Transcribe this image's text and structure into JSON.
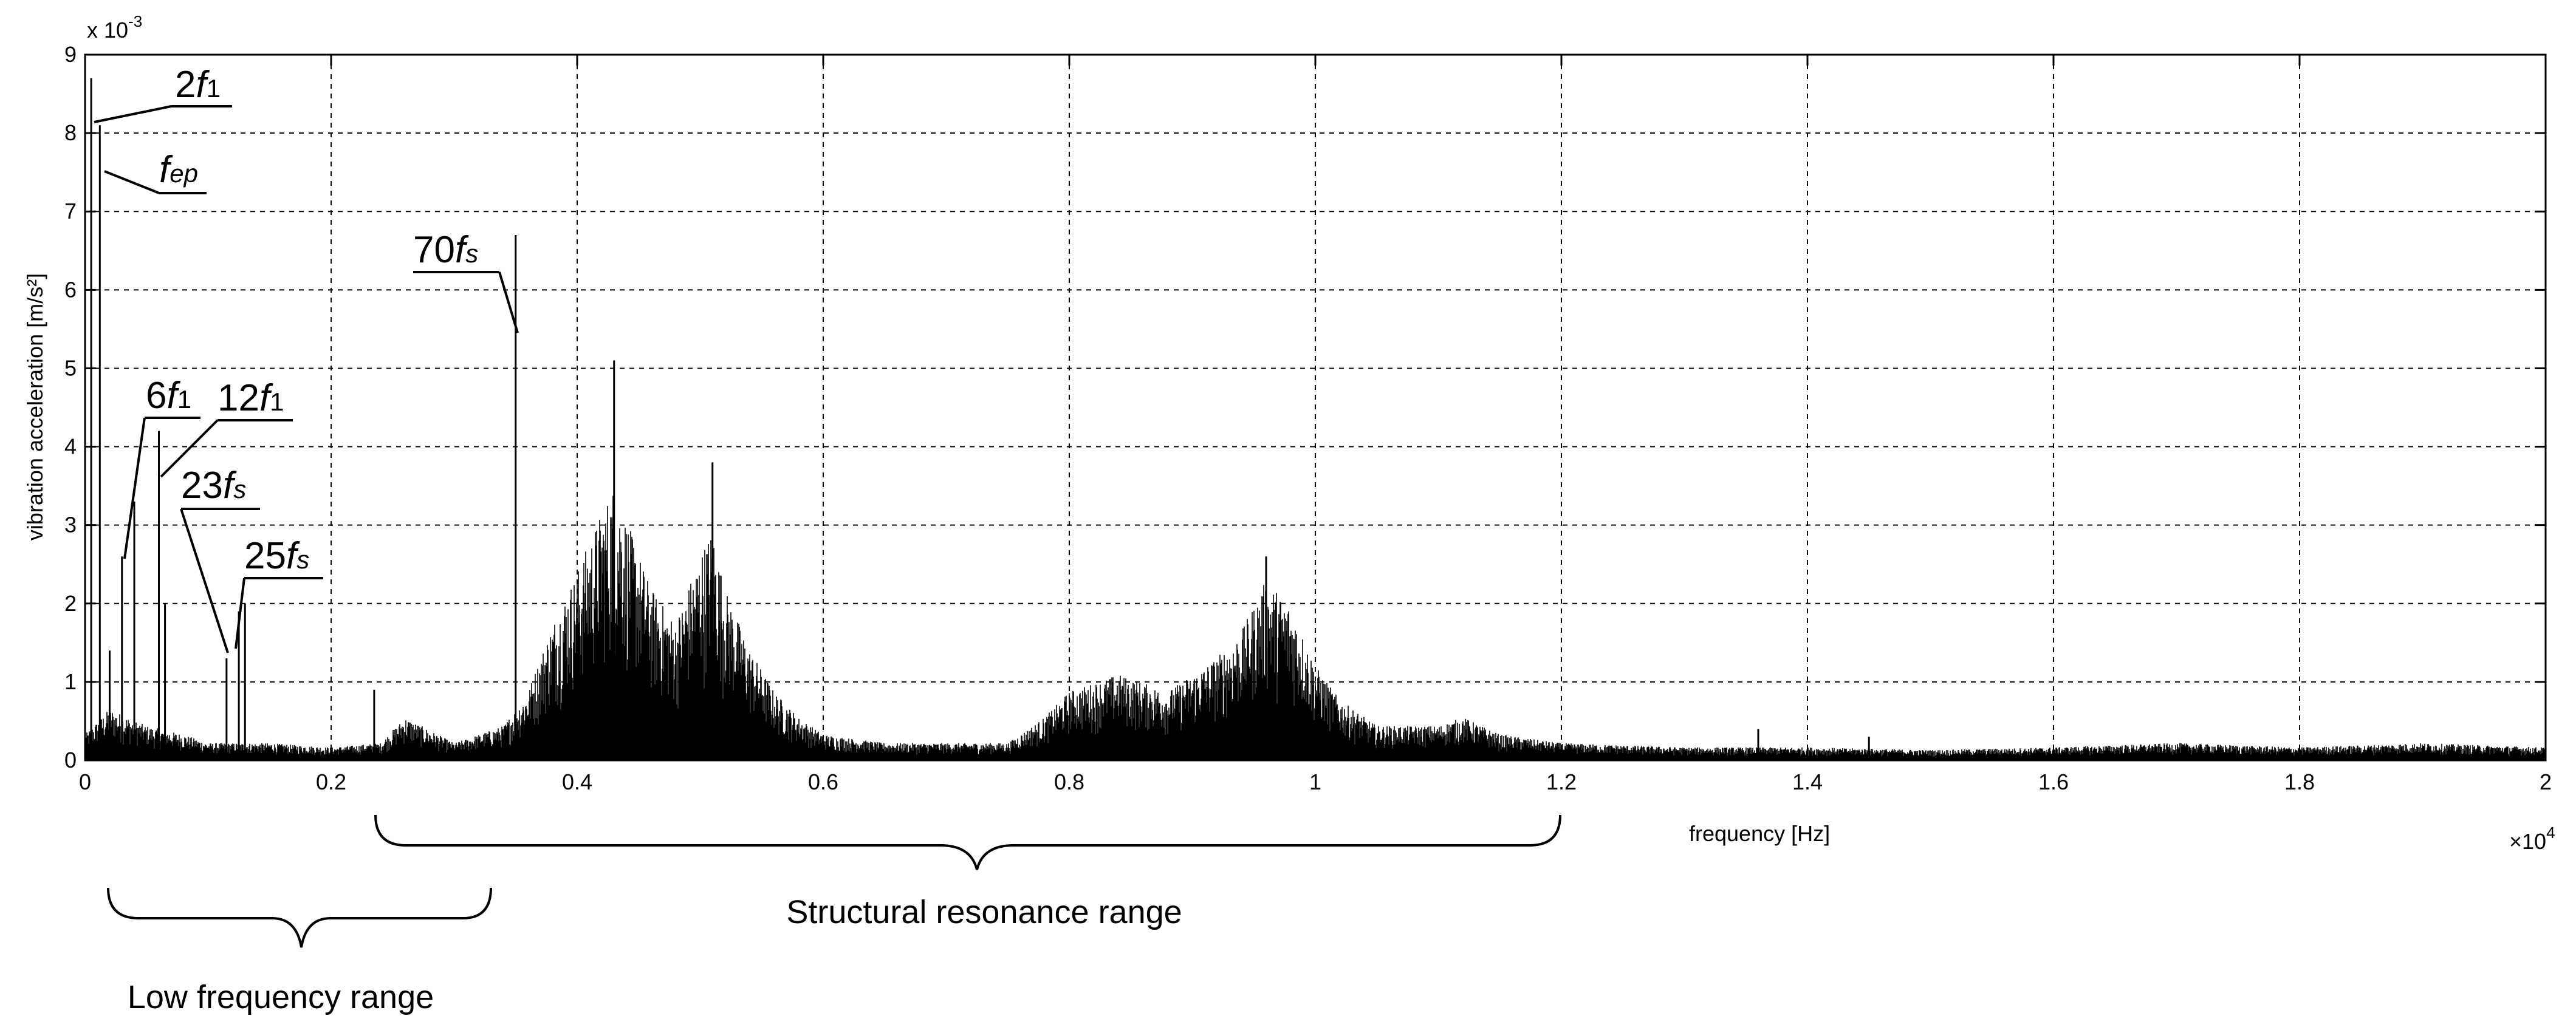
{
  "chart_data": {
    "type": "line",
    "title": "",
    "xlabel": "frequency [Hz]",
    "ylabel": "vibration acceleration [m/s²]",
    "x_scale_label": "×10",
    "x_scale_exp": "4",
    "y_scale_label": "x 10",
    "y_scale_exp": "-3",
    "xlim": [
      0,
      2
    ],
    "ylim": [
      0,
      9
    ],
    "x_ticks": [
      "0",
      "0.2",
      "0.4",
      "0.6",
      "0.8",
      "1",
      "1.2",
      "1.4",
      "1.6",
      "1.8",
      "2"
    ],
    "y_ticks": [
      "0",
      "1",
      "2",
      "3",
      "4",
      "5",
      "6",
      "7",
      "8",
      "9"
    ],
    "grid": true,
    "line_color": "#000000",
    "spectrum": {
      "x": [
        0,
        0.02,
        0.05,
        0.08,
        0.1,
        0.15,
        0.2,
        0.24,
        0.26,
        0.3,
        0.32,
        0.34,
        0.36,
        0.38,
        0.4,
        0.42,
        0.43,
        0.44,
        0.46,
        0.48,
        0.5,
        0.51,
        0.52,
        0.54,
        0.56,
        0.58,
        0.6,
        0.65,
        0.7,
        0.75,
        0.78,
        0.8,
        0.82,
        0.84,
        0.86,
        0.88,
        0.9,
        0.92,
        0.94,
        0.96,
        0.98,
        1.0,
        1.02,
        1.05,
        1.1,
        1.12,
        1.15,
        1.2,
        1.3,
        1.4,
        1.5,
        1.6,
        1.7,
        1.8,
        1.9,
        2.0
      ],
      "y": [
        0.3,
        0.6,
        0.4,
        0.3,
        0.2,
        0.2,
        0.15,
        0.2,
        0.5,
        0.2,
        0.3,
        0.4,
        0.8,
        1.6,
        2.2,
        2.9,
        3.2,
        2.8,
        2.0,
        1.6,
        2.4,
        2.7,
        2.0,
        1.3,
        0.8,
        0.5,
        0.3,
        0.2,
        0.2,
        0.2,
        0.5,
        0.8,
        0.9,
        1.0,
        0.9,
        0.8,
        1.0,
        1.2,
        1.5,
        2.1,
        1.8,
        1.1,
        0.7,
        0.4,
        0.4,
        0.5,
        0.3,
        0.2,
        0.15,
        0.15,
        0.12,
        0.15,
        0.2,
        0.15,
        0.2,
        0.15
      ]
    },
    "peaks": [
      {
        "x": 0.005,
        "y": 8.7
      },
      {
        "x": 0.012,
        "y": 8.1
      },
      {
        "x": 0.02,
        "y": 1.4
      },
      {
        "x": 0.03,
        "y": 2.6
      },
      {
        "x": 0.04,
        "y": 3.3
      },
      {
        "x": 0.06,
        "y": 4.2
      },
      {
        "x": 0.065,
        "y": 2.0
      },
      {
        "x": 0.115,
        "y": 1.3
      },
      {
        "x": 0.125,
        "y": 1.9
      },
      {
        "x": 0.13,
        "y": 2.0
      },
      {
        "x": 0.235,
        "y": 0.9
      },
      {
        "x": 0.35,
        "y": 6.7
      },
      {
        "x": 0.43,
        "y": 5.1
      },
      {
        "x": 0.51,
        "y": 3.8
      },
      {
        "x": 0.96,
        "y": 2.6
      },
      {
        "x": 1.36,
        "y": 0.4
      },
      {
        "x": 1.45,
        "y": 0.3
      }
    ],
    "annotations": [
      {
        "label": "2",
        "italic": "f",
        "sub": "1"
      },
      {
        "label": "",
        "italic": "f",
        "sub": "ep"
      },
      {
        "label": "70",
        "italic": "f",
        "sub": "s"
      },
      {
        "label": "6",
        "italic": "f",
        "sub": "1"
      },
      {
        "label": "12",
        "italic": "f",
        "sub": "1"
      },
      {
        "label": "23",
        "italic": "f",
        "sub": "s"
      },
      {
        "label": "25",
        "italic": "f",
        "sub": "s"
      }
    ],
    "ranges": [
      {
        "label": "Structural resonance range",
        "x_start": 0.23,
        "x_end": 1.2
      },
      {
        "label": "Low frequency range",
        "x_start": 0.015,
        "x_end": 0.33
      }
    ]
  }
}
